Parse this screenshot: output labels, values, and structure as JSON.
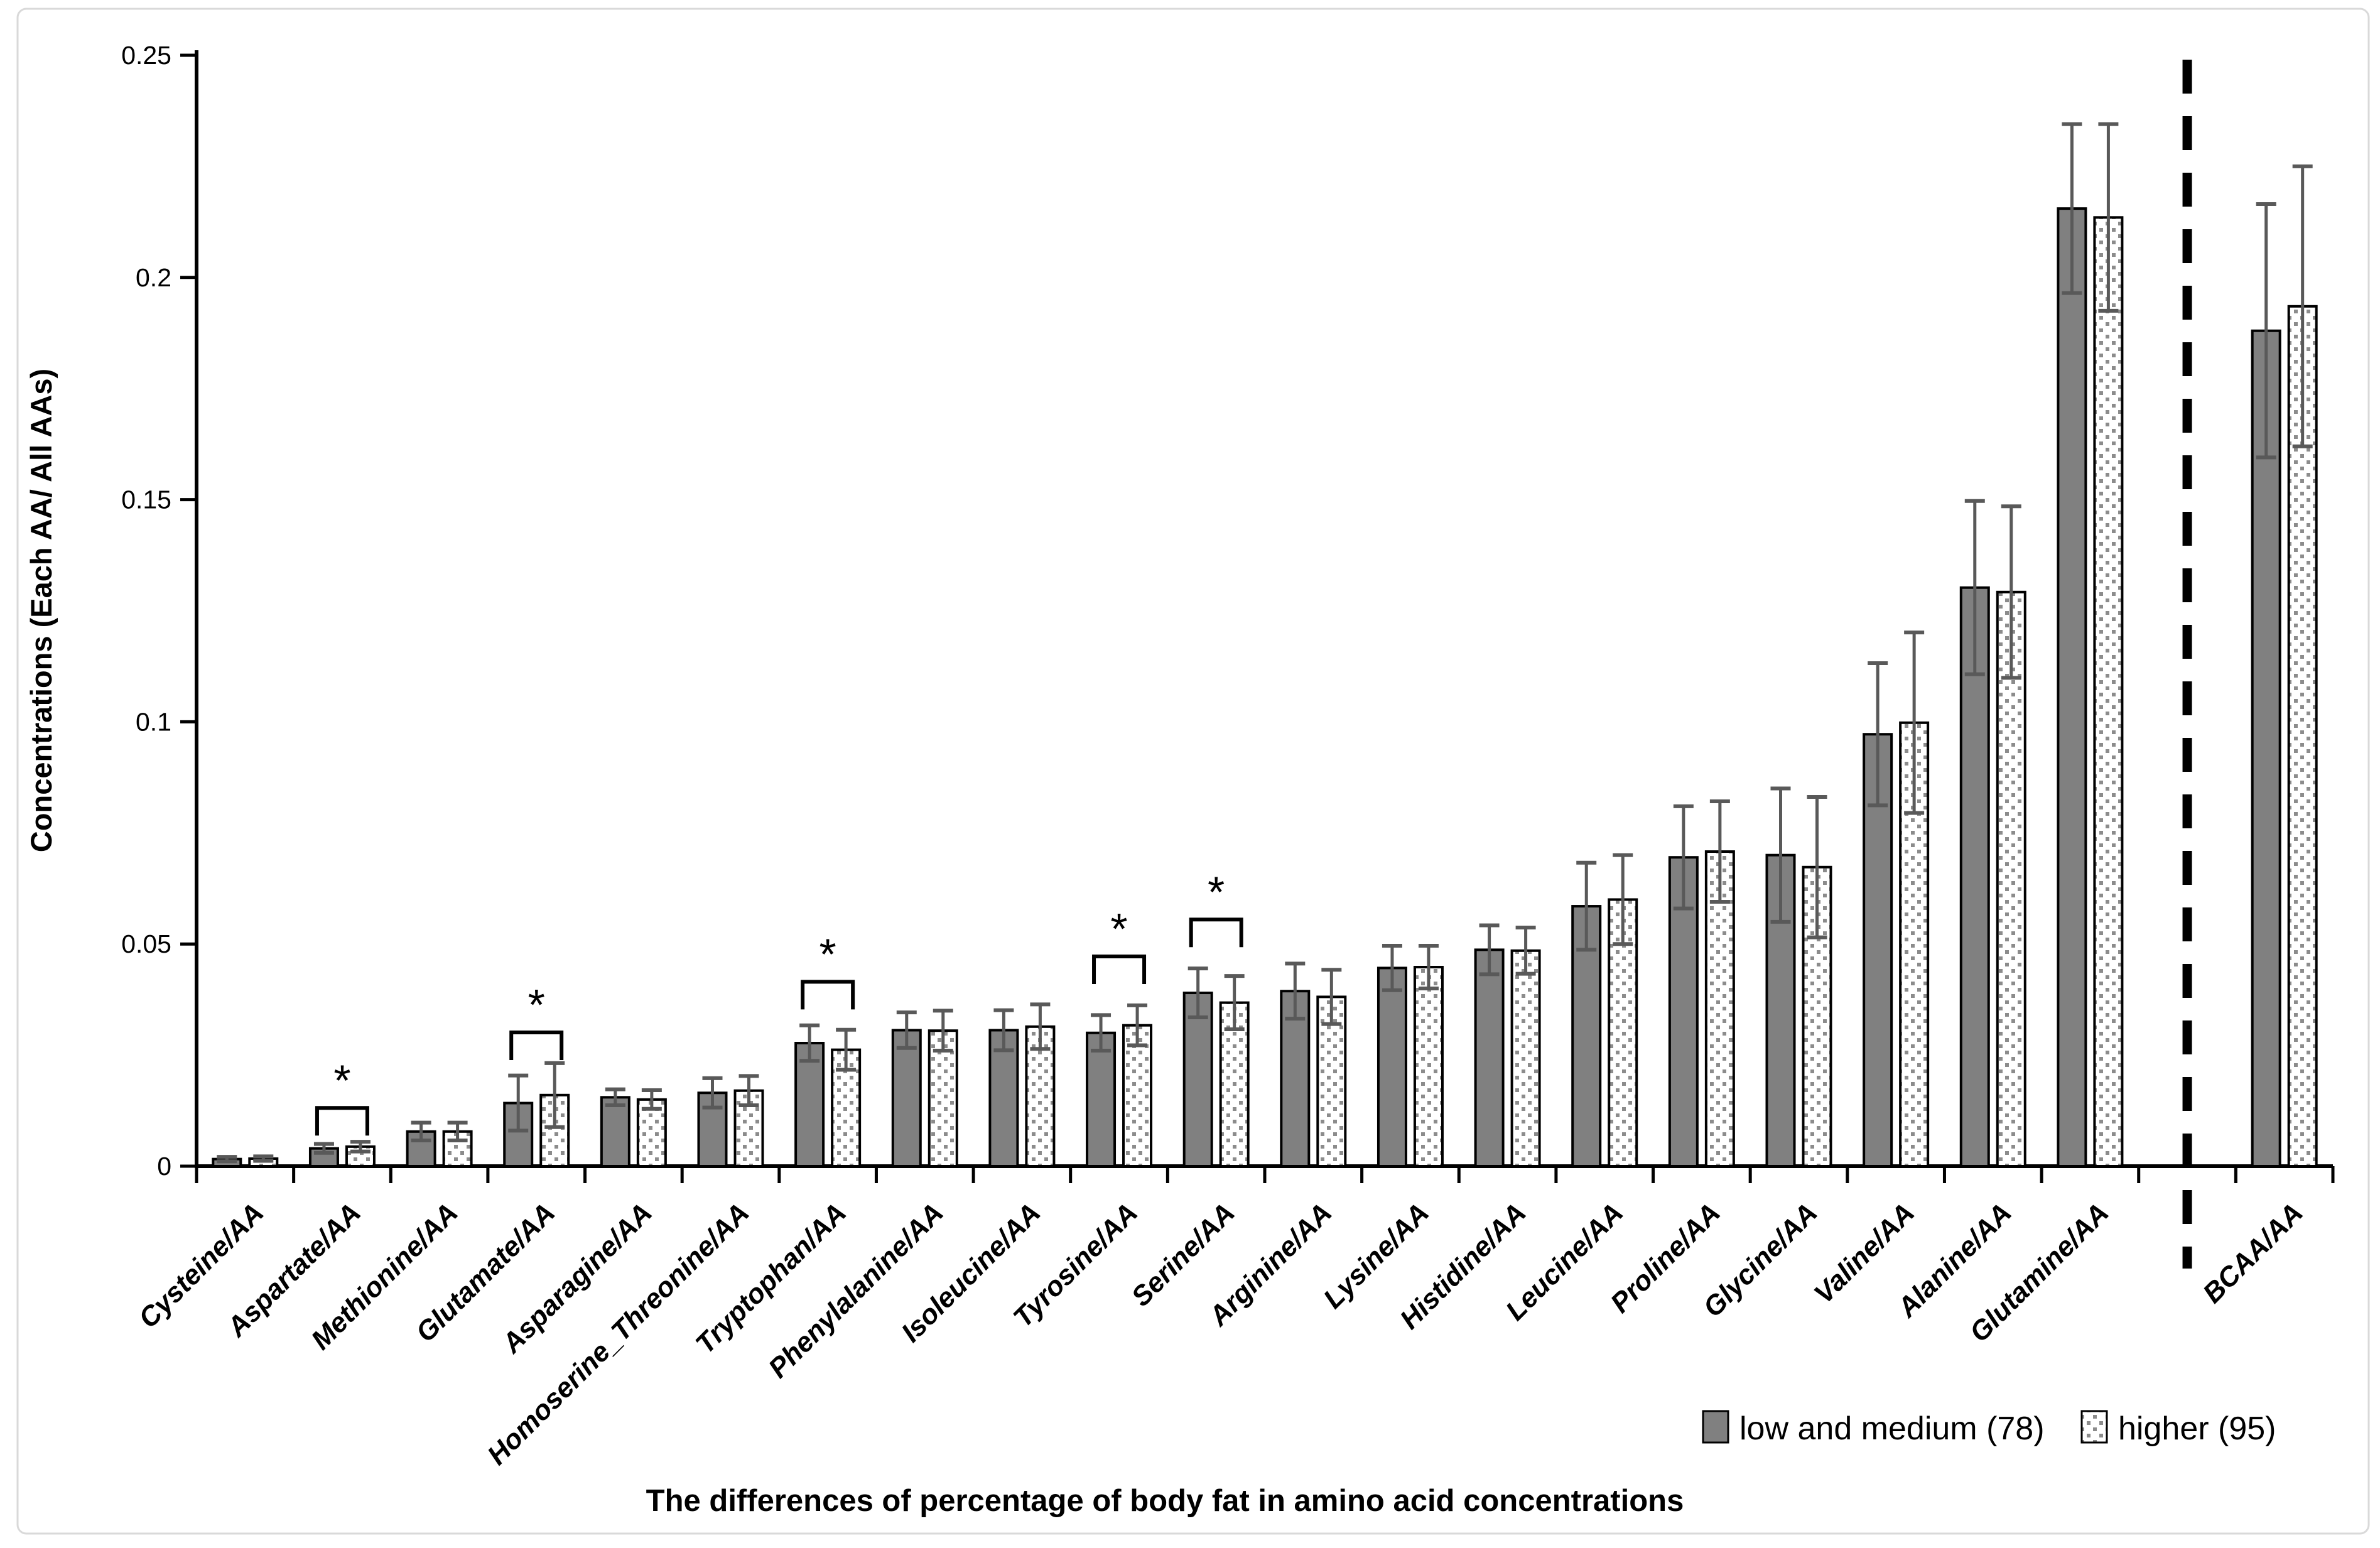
{
  "frame": {
    "border_color": "#d9d9d9",
    "background": "#ffffff"
  },
  "chart_data": {
    "type": "bar",
    "title": "",
    "xlabel": "The differences of percentage of body fat in amino acid concentrations",
    "ylabel": "Concentrations (Each AA/ All AAs)",
    "ylim": [
      0,
      0.25
    ],
    "yticks": [
      0,
      0.05,
      0.1,
      0.15,
      0.2,
      0.25
    ],
    "ytick_labels": [
      "0",
      "0.05",
      "0.1",
      "0.15",
      "0.2",
      "0.25"
    ],
    "grid": "off",
    "legend_position": "bottom-right",
    "categories": [
      "Cysteine/AA",
      "Aspartate/AA",
      "Methionine/AA",
      "Glutamate/AA",
      "Asparagine/AA",
      "Homoserine_Threonine/AA",
      "Tryptophan/AA",
      "Phenylalanine/AA",
      "Isoleucine/AA",
      "Tyrosine/AA",
      "Serine/AA",
      "Arginine/AA",
      "Lysine/AA",
      "Histidine/AA",
      "Leucine/AA",
      "Proline/AA",
      "Glycine/AA",
      "Valine/AA",
      "Alanine/AA",
      "Glutamine/AA",
      "BCAA/AA"
    ],
    "series": [
      {
        "name": "low and medium (78)",
        "style": "solid",
        "color": "#808080",
        "values": [
          0.0016,
          0.004,
          0.0078,
          0.0142,
          0.0155,
          0.0165,
          0.0277,
          0.0306,
          0.0306,
          0.03,
          0.039,
          0.0394,
          0.0446,
          0.0487,
          0.0585,
          0.0695,
          0.07,
          0.0972,
          0.1302,
          0.2155,
          0.188
        ],
        "errors": [
          0.0005,
          0.001,
          0.002,
          0.0062,
          0.0018,
          0.0033,
          0.004,
          0.004,
          0.0045,
          0.004,
          0.0055,
          0.0062,
          0.005,
          0.0055,
          0.0098,
          0.0115,
          0.015,
          0.016,
          0.0195,
          0.019,
          0.0285
        ]
      },
      {
        "name": "higher (95)",
        "style": "dotted-pattern",
        "color": "#ffffff",
        "dot_color": "#8c8c8c",
        "values": [
          0.0017,
          0.0044,
          0.0078,
          0.016,
          0.015,
          0.017,
          0.0262,
          0.0305,
          0.0314,
          0.0317,
          0.0368,
          0.0381,
          0.0448,
          0.0485,
          0.06,
          0.0708,
          0.0673,
          0.0998,
          0.1292,
          0.2135,
          0.1935
        ]
      }
    ],
    "series2_errors_note": "errors for series 'higher (95)'",
    "higher_errors": [
      0.0005,
      0.0011,
      0.002,
      0.0072,
      0.0021,
      0.0033,
      0.0045,
      0.0045,
      0.005,
      0.0045,
      0.006,
      0.0061,
      0.0048,
      0.0052,
      0.01,
      0.0113,
      0.0158,
      0.0203,
      0.0193,
      0.021,
      0.0315
    ],
    "error_bar_color": "#595959",
    "bar_outline_color": "#000000",
    "sig_symbol": "*",
    "significance": [
      {
        "category": "Aspartate/AA",
        "index": 1,
        "bracket_top": 0.0131
      },
      {
        "category": "Glutamate/AA",
        "index": 3,
        "bracket_top": 0.0301
      },
      {
        "category": "Tryptophan/AA",
        "index": 6,
        "bracket_top": 0.0415
      },
      {
        "category": "Tyrosine/AA",
        "index": 9,
        "bracket_top": 0.0472
      },
      {
        "category": "Serine/AA",
        "index": 10,
        "bracket_top": 0.0555
      }
    ],
    "divider": {
      "style": "dashed",
      "color": "#000000",
      "after_category": "Glutamine/AA"
    }
  }
}
